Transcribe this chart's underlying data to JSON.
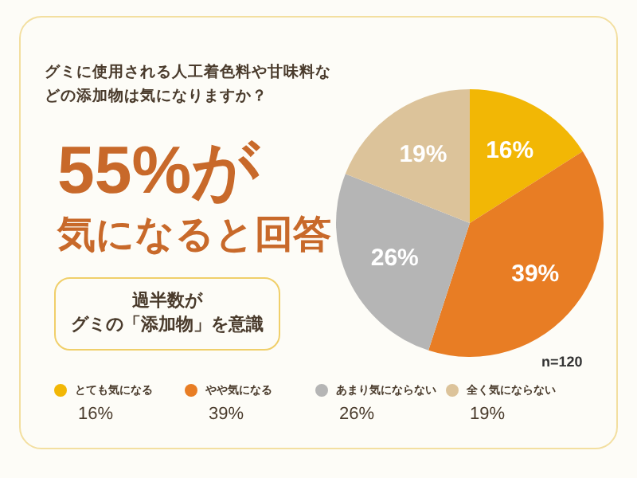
{
  "chart_data": {
    "type": "pie",
    "title": "グミに使用される人工着色料や甘味料などの添加物は気になりますか？",
    "categories": [
      "とても気になる",
      "やや気になる",
      "あまり気にならない",
      "全く気にならない"
    ],
    "values": [
      16,
      39,
      26,
      19
    ],
    "value_labels": [
      "16%",
      "39%",
      "26%",
      "19%"
    ],
    "colors": [
      "#f2b705",
      "#e87d24",
      "#b5b5b5",
      "#dcc39a"
    ],
    "legend": "bottom",
    "annotations": [
      "55%が",
      "気になると回答",
      "過半数が",
      "グミの「添加物」を意識",
      "n=120"
    ]
  }
}
